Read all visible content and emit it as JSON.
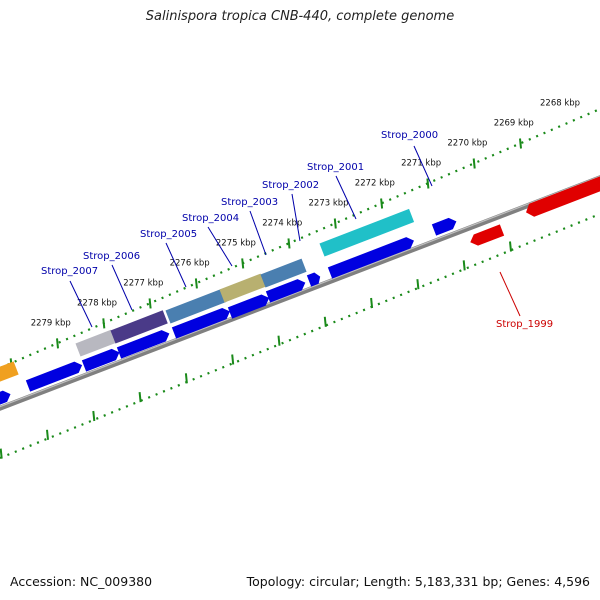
{
  "title": "Salinispora tropica CNB-440, complete genome",
  "footer": {
    "accession": "Accession: NC_009380",
    "summary": "Topology: circular; Length: 5,183,331 bp; Genes: 4,596"
  },
  "ruler_labels": [
    "2268 kbp",
    "2269 kbp",
    "2270 kbp",
    "2271 kbp",
    "2272 kbp",
    "2273 kbp",
    "2274 kbp",
    "2275 kbp",
    "2276 kbp",
    "2277 kbp",
    "2278 kbp",
    "2279 kbp"
  ],
  "gene_labels": [
    "Strop_2000",
    "Strop_2001",
    "Strop_2002",
    "Strop_2003",
    "Strop_2004",
    "Strop_2005",
    "Strop_2006",
    "Strop_2007",
    "Strop_1999"
  ],
  "colors": {
    "cds": "#0000e0",
    "highlight": "#e00000",
    "label_blue": "#0000aa",
    "label_red": "#cc0000",
    "ruler": "#1a8a1a",
    "backbone": "#808080",
    "orange": "#f0a020",
    "cyan": "#20c0c8",
    "steel": "#4a7fb0",
    "khaki": "#b8b070",
    "purple": "#4a3a88",
    "grey": "#b8b8c0"
  }
}
